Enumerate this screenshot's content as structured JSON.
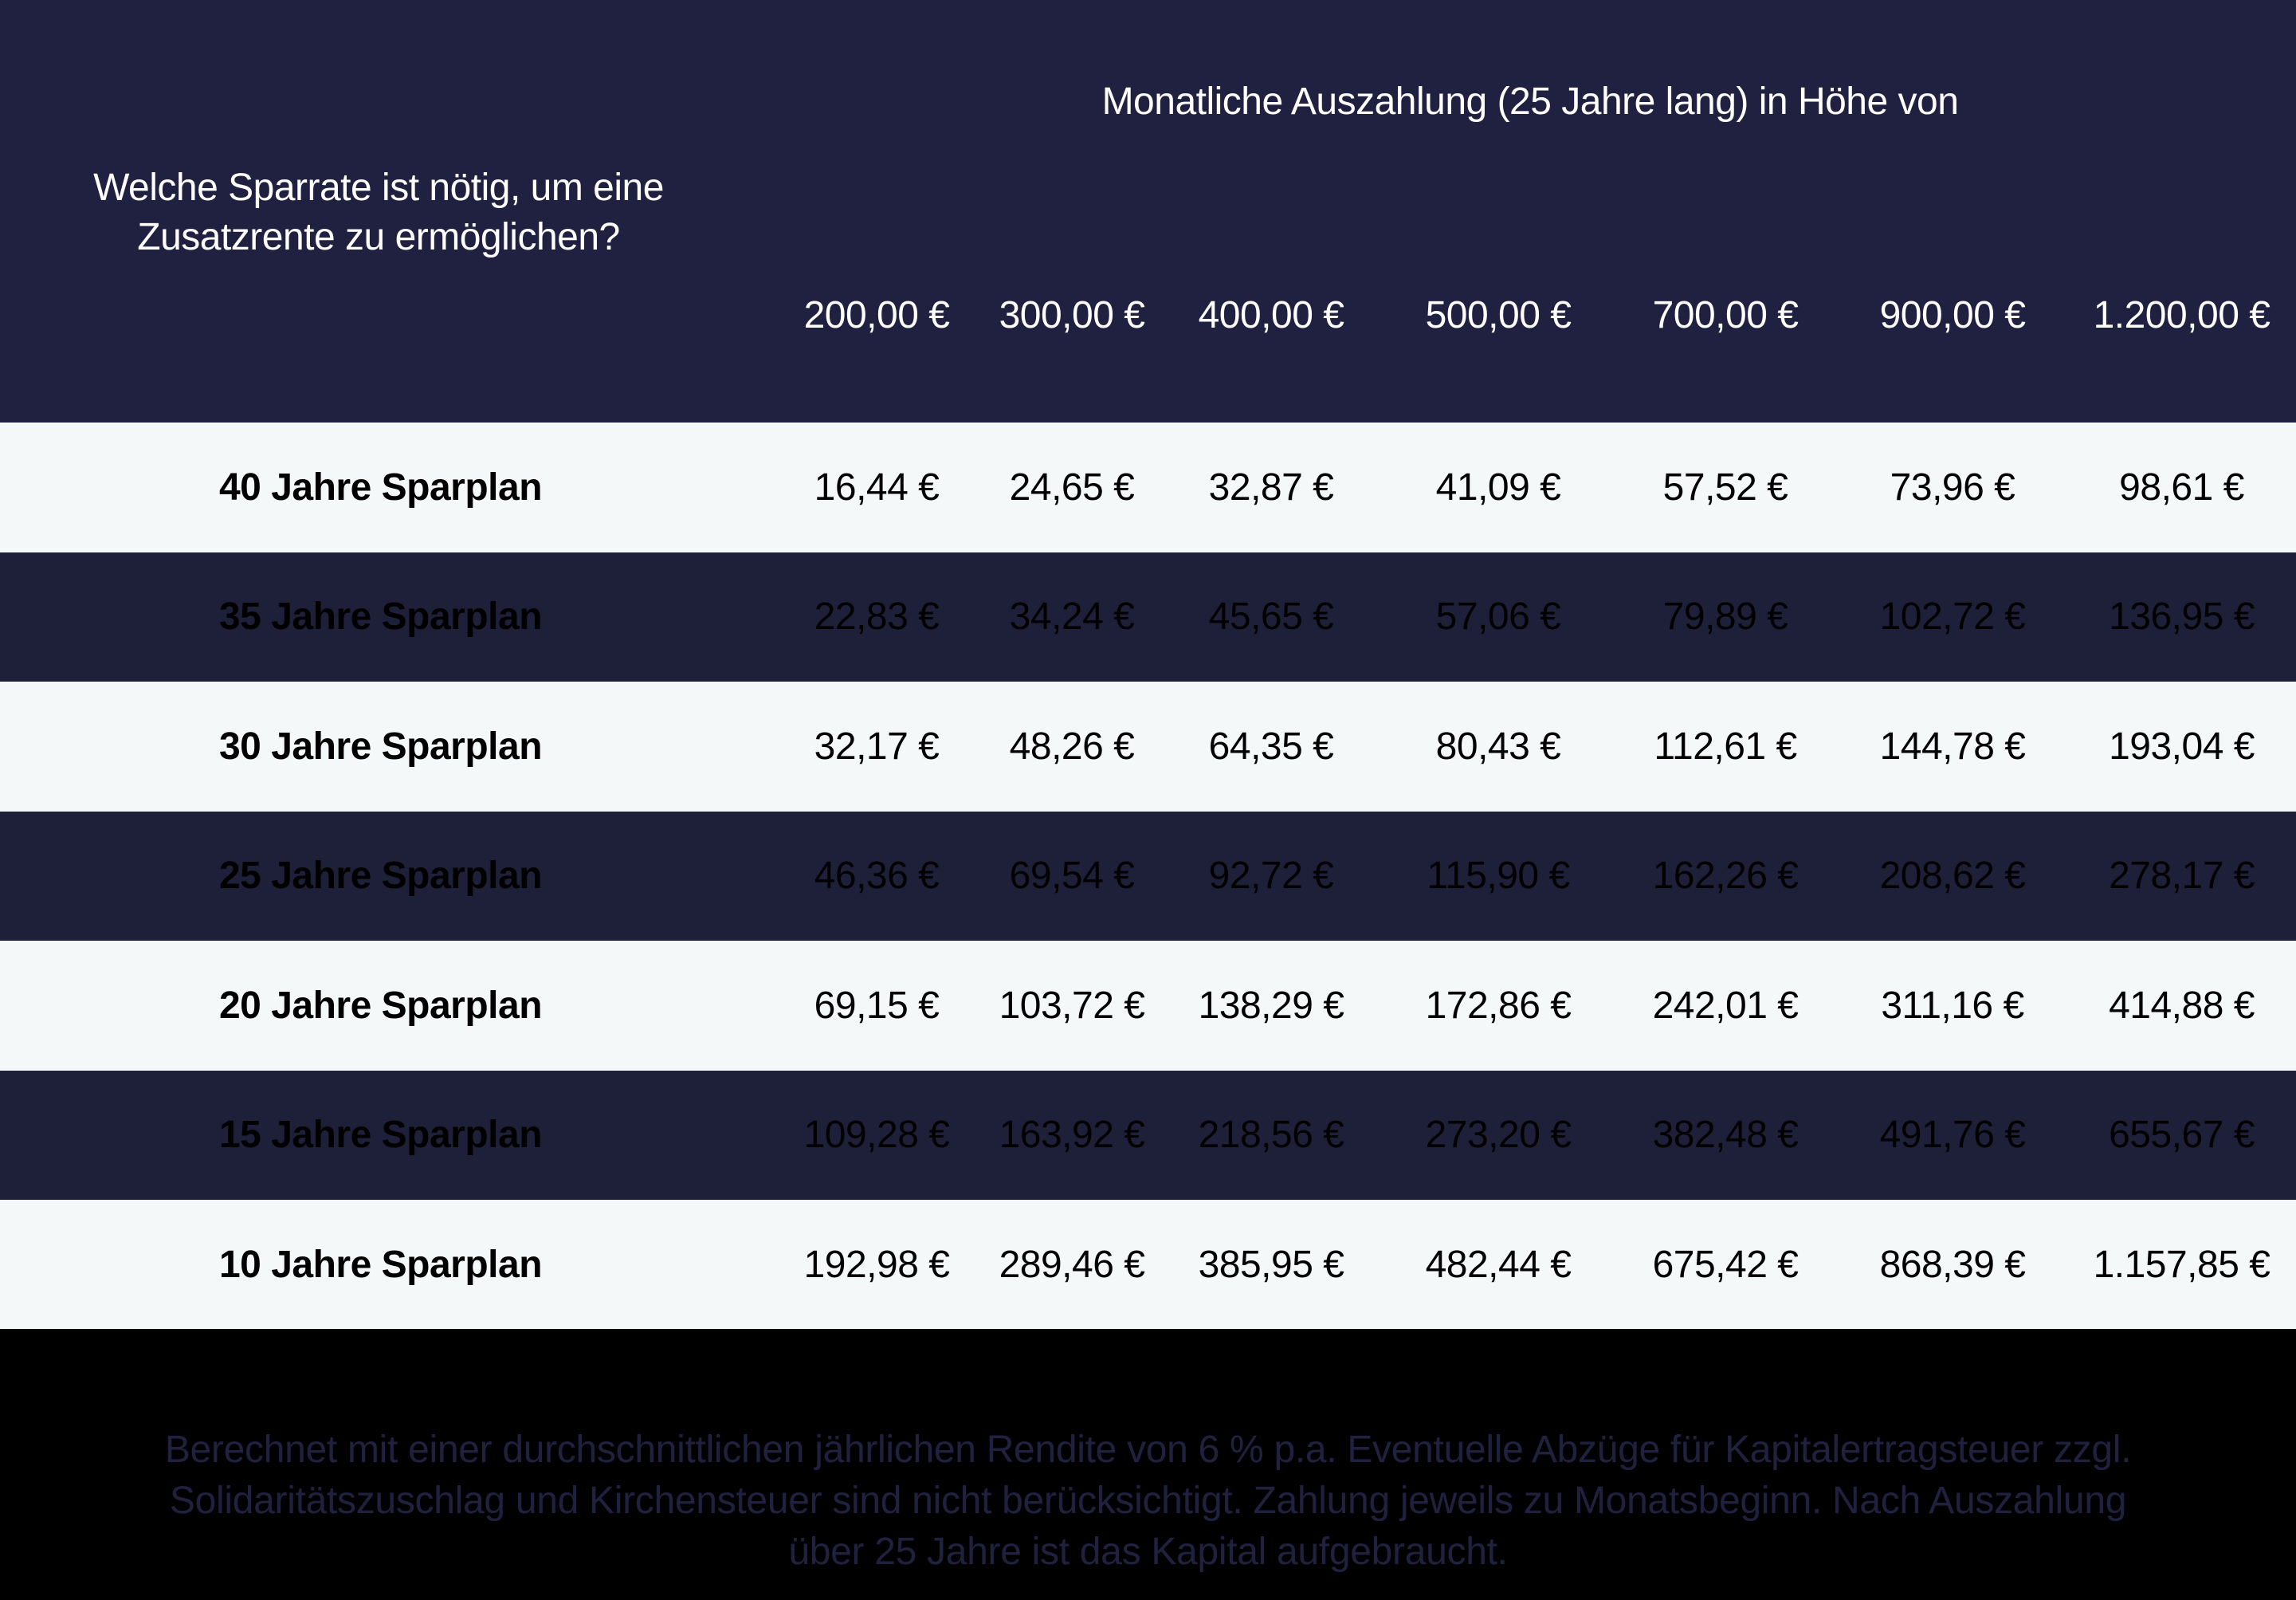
{
  "header": {
    "question": "Welche Sparrate ist nötig, um eine Zusatzrente zu ermöglichen?",
    "group_title": "Monatliche Auszahlung (25 Jahre lang) in Höhe von",
    "columns": [
      "200,00 €",
      "300,00 €",
      "400,00 €",
      "500,00 €",
      "700,00 €",
      "900,00 €",
      "1.200,00 €"
    ]
  },
  "rows": [
    {
      "label": "40 Jahre Sparplan",
      "style": "light",
      "values": [
        "16,44 €",
        "24,65 €",
        "32,87 €",
        "41,09 €",
        "57,52 €",
        "73,96 €",
        "98,61 €"
      ]
    },
    {
      "label": "35 Jahre Sparplan",
      "style": "dark",
      "values": [
        "22,83 €",
        "34,24 €",
        "45,65 €",
        "57,06 €",
        "79,89 €",
        "102,72 €",
        "136,95 €"
      ]
    },
    {
      "label": "30 Jahre Sparplan",
      "style": "light",
      "values": [
        "32,17 €",
        "48,26 €",
        "64,35 €",
        "80,43 €",
        "112,61 €",
        "144,78 €",
        "193,04 €"
      ]
    },
    {
      "label": "25 Jahre Sparplan",
      "style": "dark",
      "values": [
        "46,36 €",
        "69,54 €",
        "92,72 €",
        "115,90 €",
        "162,26 €",
        "208,62 €",
        "278,17 €"
      ]
    },
    {
      "label": "20 Jahre Sparplan",
      "style": "light",
      "values": [
        "69,15 €",
        "103,72 €",
        "138,29 €",
        "172,86 €",
        "242,01 €",
        "311,16 €",
        "414,88 €"
      ]
    },
    {
      "label": "15 Jahre Sparplan",
      "style": "dark",
      "values": [
        "109,28 €",
        "163,92 €",
        "218,56 €",
        "273,20 €",
        "382,48 €",
        "491,76 €",
        "655,67 €"
      ]
    },
    {
      "label": "10 Jahre Sparplan",
      "style": "light",
      "values": [
        "192,98 €",
        "289,46 €",
        "385,95 €",
        "482,44 €",
        "675,42 €",
        "868,39 €",
        "1.157,85 €"
      ]
    }
  ],
  "footer": {
    "note": "Berechnet mit einer durchschnittlichen jährlichen Rendite von 6 % p.a. Eventuelle Abzüge für Kapitalertragsteuer zzgl. Solidaritätszuschlag und Kirchensteuer sind nicht berücksichtigt. Zahlung jeweils zu Monatsbeginn. Nach Auszahlung über 25 Jahre ist das Kapital aufgebraucht."
  },
  "colors": {
    "header_bg": "#202140",
    "row_light_bg": "#f4f8f9",
    "row_dark_bg": "#1e2039",
    "footer_bg": "#000000",
    "footer_text": "#20213f"
  }
}
